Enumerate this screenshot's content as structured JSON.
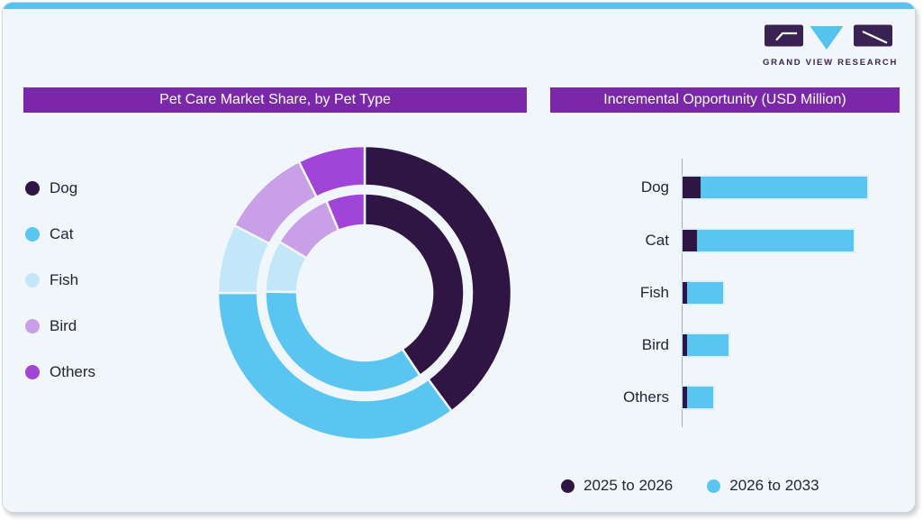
{
  "page": {
    "background": "#f0f6fa",
    "accent_strip_color": "#56c2ee",
    "card_border_color": "#ccd7de"
  },
  "logo": {
    "text": "GRAND VIEW RESEARCH",
    "dark_color": "#3a2353",
    "accent_color": "#56c2ee"
  },
  "left_panel": {
    "title": "Pet Care Market Share, by Pet Type",
    "title_bg": "#7b28a8",
    "title_text_color": "#ffffff"
  },
  "right_panel": {
    "title": "Incremental Opportunity (USD Million)",
    "title_bg": "#7b28a8",
    "title_text_color": "#ffffff"
  },
  "chart_data": [
    {
      "type": "pie",
      "subtype": "double-ring-donut",
      "title": "Pet Care Market Share, by Pet Type",
      "categories": [
        "Dog",
        "Cat",
        "Fish",
        "Bird",
        "Others"
      ],
      "colors": [
        "#2f1543",
        "#5bc5f2",
        "#c2e7f8",
        "#c9a0e7",
        "#a144d8"
      ],
      "series": [
        {
          "name": "outer ring",
          "values": [
            39.9,
            35.1,
            7.6,
            10.0,
            7.4
          ]
        },
        {
          "name": "inner ring",
          "values": [
            40.6,
            34.6,
            8.4,
            10.1,
            6.3
          ]
        }
      ],
      "units": "percent of whole, estimated from arc angles (no numeric labels shown)",
      "start_angle_deg": 0,
      "direction": "clockwise",
      "legend_position": "left"
    },
    {
      "type": "bar",
      "orientation": "horizontal",
      "stacked": true,
      "title": "Incremental Opportunity (USD Million)",
      "categories": [
        "Dog",
        "Cat",
        "Fish",
        "Bird",
        "Others"
      ],
      "series": [
        {
          "name": "2025 to 2026",
          "color": "#2f1543",
          "values": [
            20,
            16,
            5,
            5,
            4.5
          ]
        },
        {
          "name": "2026 to 2033",
          "color": "#5bc5f2",
          "values": [
            185,
            174,
            40,
            46,
            29.5
          ]
        }
      ],
      "xlim": [
        0,
        253
      ],
      "units": "relative bar length, estimated (no numeric axis labels shown)",
      "grid": false,
      "axis_color": "#a6adb4",
      "legend_position": "bottom"
    }
  ]
}
